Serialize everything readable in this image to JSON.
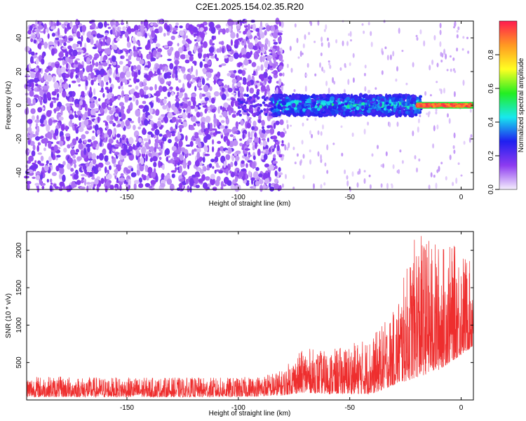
{
  "figure": {
    "title": "C2E1.2025.154.02.35.R20"
  },
  "chart_data": [
    {
      "type": "heatmap",
      "xlabel": "Height of straight line (km)",
      "ylabel": "Frequency (Hz)",
      "xlim": [
        -195,
        5.5
      ],
      "ylim": [
        -50,
        50
      ],
      "x_ticks": [
        -150,
        -100,
        -50,
        0
      ],
      "x_tick_labels": [
        "-150",
        "-100",
        "-50",
        "0"
      ],
      "y_ticks": [
        -40,
        -20,
        0,
        20,
        40
      ],
      "y_tick_labels": [
        "-40",
        "-20",
        "0",
        "20",
        "40"
      ],
      "colorbar": {
        "label": "Normalized spectral amplitude",
        "range": [
          0,
          1
        ],
        "ticks": [
          0.0,
          0.2,
          0.4,
          0.6,
          0.8
        ],
        "tick_labels": [
          "0.0",
          "0.2",
          "0.4",
          "0.6",
          "0.8"
        ],
        "colormap": [
          "#f5eefd",
          "#8d3bf0",
          "#1f1ff0",
          "#18e8ee",
          "#22ee22",
          "#ffff22",
          "#ff9922",
          "#ff1a4f"
        ]
      },
      "regions": [
        {
          "x_range": [
            -195,
            -80
          ],
          "description_value": "broadband noise, amplitude 0.1-0.4 across all frequencies"
        },
        {
          "x_range": [
            -80,
            -20
          ],
          "center_frequency_hz": 0,
          "band_width_hz": 6,
          "amplitude": [
            0.4,
            0.6
          ]
        },
        {
          "x_range": [
            -20,
            5
          ],
          "center_frequency_hz": 0,
          "band_width_hz": 3,
          "amplitude": [
            0.8,
            1.0
          ]
        }
      ],
      "grid": false
    },
    {
      "type": "line",
      "xlabel": "Height of straight line (km)",
      "ylabel": "SNR (10 * v/v)",
      "xlim": [
        -195,
        5.5
      ],
      "ylim": [
        0,
        2250
      ],
      "x_ticks": [
        -150,
        -100,
        -50,
        0
      ],
      "x_tick_labels": [
        "-150",
        "-100",
        "-50",
        "0"
      ],
      "y_ticks": [
        500,
        1000,
        1500,
        2000
      ],
      "y_tick_labels": [
        "500",
        "1000",
        "1500",
        "2000"
      ],
      "series": [
        {
          "color": "#ee2e2e",
          "envelope": [
            {
              "x": -195,
              "low": 40,
              "high": 320
            },
            {
              "x": -150,
              "low": 40,
              "high": 300
            },
            {
              "x": -100,
              "low": 40,
              "high": 300
            },
            {
              "x": -90,
              "low": 50,
              "high": 330
            },
            {
              "x": -80,
              "low": 60,
              "high": 400
            },
            {
              "x": -76,
              "low": 80,
              "high": 550
            },
            {
              "x": -70,
              "low": 100,
              "high": 700
            },
            {
              "x": -60,
              "low": 80,
              "high": 650
            },
            {
              "x": -50,
              "low": 80,
              "high": 750
            },
            {
              "x": -40,
              "low": 80,
              "high": 850
            },
            {
              "x": -30,
              "low": 200,
              "high": 1200
            },
            {
              "x": -20,
              "low": 300,
              "high": 2250
            },
            {
              "x": -10,
              "low": 400,
              "high": 2100
            },
            {
              "x": 0,
              "low": 600,
              "high": 2050
            },
            {
              "x": 5,
              "low": 700,
              "high": 1800
            }
          ]
        }
      ],
      "grid": false
    }
  ]
}
